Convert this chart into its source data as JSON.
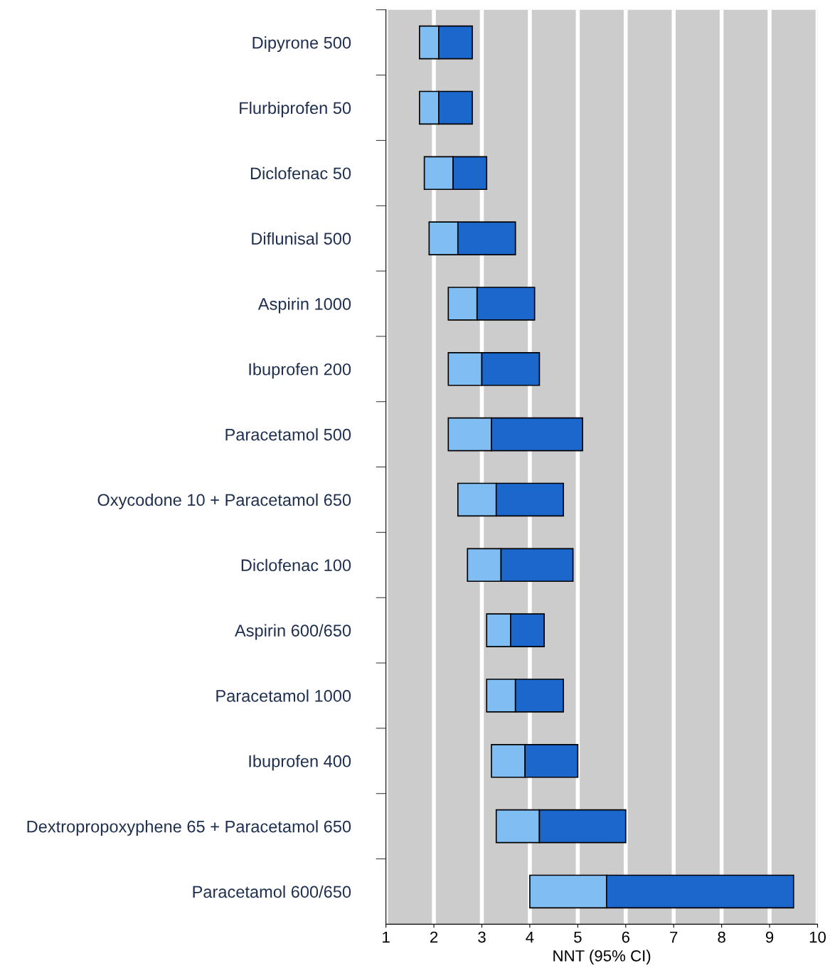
{
  "chart_data": {
    "type": "bar",
    "orientation": "horizontal",
    "xlabel": "NNT (95% CI)",
    "categories": [
      "Dipyrone 500",
      "Flurbiprofen 50",
      "Diclofenac 50",
      "Diflunisal 500",
      "Aspirin 1000",
      "Ibuprofen 200",
      "Paracetamol 500",
      "Oxycodone 10 + Paracetamol 650",
      "Diclofenac 100",
      "Aspirin 600/650",
      "Paracetamol 1000",
      "Ibuprofen 400",
      "Dextropropoxyphene 65 + Paracetamol 650",
      "Paracetamol 600/650"
    ],
    "series": [
      {
        "color": "#7fbdf2",
        "base": [
          1.7,
          1.7,
          1.8,
          1.9,
          2.3,
          2.3,
          2.3,
          2.5,
          2.7,
          3.1,
          3.1,
          3.2,
          3.3,
          4.0
        ],
        "values": [
          0.4,
          0.4,
          0.6,
          0.6,
          0.6,
          0.7,
          0.9,
          0.8,
          0.7,
          0.5,
          0.6,
          0.7,
          0.9,
          1.6
        ]
      },
      {
        "color": "#1b67cc",
        "base": [
          2.1,
          2.1,
          2.4,
          2.5,
          2.9,
          3.0,
          3.2,
          3.3,
          3.4,
          3.6,
          3.7,
          3.9,
          4.2,
          5.6
        ],
        "values": [
          0.7,
          0.7,
          0.7,
          1.2,
          1.2,
          1.2,
          1.9,
          1.4,
          1.5,
          0.7,
          1.0,
          1.1,
          1.8,
          3.9
        ]
      }
    ],
    "xlim": [
      1,
      10
    ],
    "xticks": [
      1,
      2,
      3,
      4,
      5,
      6,
      7,
      8,
      9,
      10
    ],
    "grid": "x"
  }
}
